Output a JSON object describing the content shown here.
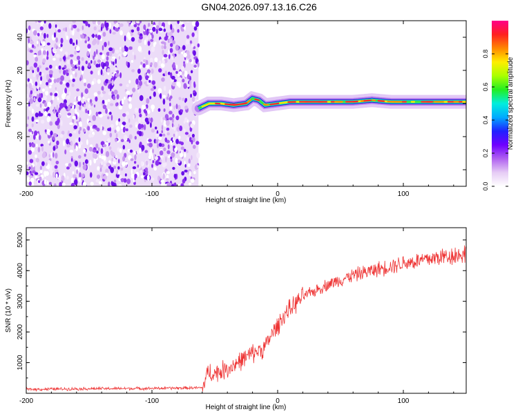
{
  "title": "GN04.2026.097.13.16.C26",
  "colors": {
    "snr_line": "#ee3333",
    "spectrum_low": "#7a1fe0",
    "colormap": [
      "#ffffff",
      "#e6ccf5",
      "#b061f0",
      "#6f00ff",
      "#2020ff",
      "#00aaff",
      "#00eedd",
      "#22ee22",
      "#aaff00",
      "#ffee00",
      "#ff8800",
      "#ff2020",
      "#ff0088"
    ]
  },
  "chart_data": [
    {
      "type": "heatmap",
      "title": "GN04.2026.097.13.16.C26",
      "xlabel": "Height of straight line (km)",
      "ylabel": "Frequency (Hz)",
      "xlim": [
        -200,
        150
      ],
      "ylim": [
        -50,
        50
      ],
      "x_ticks": [
        -200,
        -100,
        0,
        100
      ],
      "x_tick_labels": [
        "-200",
        "-100",
        "0",
        "100"
      ],
      "y_ticks": [
        40,
        20,
        0,
        -20,
        -40
      ],
      "y_tick_labels": [
        "40",
        "20",
        "0",
        "-20",
        "-40"
      ],
      "noise_region_x": [
        -200,
        -63
      ],
      "signal_start_x": -63,
      "signal_track": {
        "x": [
          -63,
          -55,
          -45,
          -35,
          -25,
          -20,
          -15,
          -10,
          0,
          10,
          20,
          40,
          60,
          75,
          90,
          110,
          130,
          150
        ],
        "freq": [
          -3,
          0,
          0,
          -1,
          0,
          3,
          2,
          -1,
          0,
          1,
          1,
          1,
          1,
          2,
          1,
          1,
          1,
          1
        ]
      },
      "colorbar": {
        "label": "Normalized spectral amplitude",
        "range": [
          0,
          1
        ],
        "ticks": [
          0.0,
          0.2,
          0.4,
          0.6,
          0.8
        ],
        "tick_labels": [
          "0.0",
          "0.2",
          "0.4",
          "0.6",
          "0.8"
        ]
      }
    },
    {
      "type": "line",
      "xlabel": "Height of straight line (km)",
      "ylabel": "SNR (10 * v/v)",
      "xlim": [
        -200,
        150
      ],
      "ylim": [
        0,
        5400
      ],
      "x_ticks": [
        -200,
        -100,
        0,
        100
      ],
      "x_tick_labels": [
        "-200",
        "-100",
        "0",
        "100"
      ],
      "y_ticks": [
        1000,
        2000,
        3000,
        4000,
        5000
      ],
      "y_tick_labels": [
        "1000",
        "2000",
        "3000",
        "4000",
        "5000"
      ],
      "series": [
        {
          "name": "SNR",
          "x": [
            -200,
            -150,
            -100,
            -60,
            -55,
            -50,
            -40,
            -30,
            -20,
            -10,
            -5,
            0,
            5,
            10,
            15,
            20,
            25,
            30,
            40,
            50,
            60,
            70,
            80,
            90,
            100,
            110,
            120,
            130,
            140,
            150
          ],
          "y": [
            130,
            150,
            160,
            180,
            700,
            650,
            800,
            1050,
            1300,
            1500,
            1900,
            2200,
            2550,
            2750,
            2950,
            3150,
            3250,
            3350,
            3550,
            3700,
            3850,
            3950,
            4050,
            4150,
            4250,
            4300,
            4380,
            4450,
            4500,
            4550
          ]
        }
      ]
    }
  ]
}
